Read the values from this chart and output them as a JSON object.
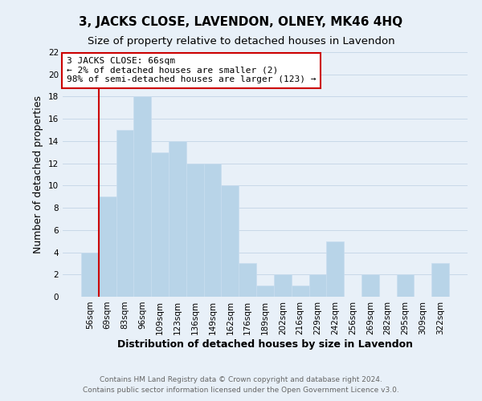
{
  "title": "3, JACKS CLOSE, LAVENDON, OLNEY, MK46 4HQ",
  "subtitle": "Size of property relative to detached houses in Lavendon",
  "xlabel": "Distribution of detached houses by size in Lavendon",
  "ylabel": "Number of detached properties",
  "bin_labels": [
    "56sqm",
    "69sqm",
    "83sqm",
    "96sqm",
    "109sqm",
    "123sqm",
    "136sqm",
    "149sqm",
    "162sqm",
    "176sqm",
    "189sqm",
    "202sqm",
    "216sqm",
    "229sqm",
    "242sqm",
    "256sqm",
    "269sqm",
    "282sqm",
    "295sqm",
    "309sqm",
    "322sqm"
  ],
  "bar_values": [
    4,
    9,
    15,
    18,
    13,
    14,
    12,
    12,
    10,
    3,
    1,
    2,
    1,
    2,
    5,
    0,
    2,
    0,
    2,
    0,
    3
  ],
  "bar_color": "#b8d4e8",
  "bar_edge_color": "#c8ddef",
  "highlight_line_color": "#cc0000",
  "annotation_text": "3 JACKS CLOSE: 66sqm\n← 2% of detached houses are smaller (2)\n98% of semi-detached houses are larger (123) →",
  "annotation_box_facecolor": "#ffffff",
  "annotation_box_edgecolor": "#cc0000",
  "ylim": [
    0,
    22
  ],
  "yticks": [
    0,
    2,
    4,
    6,
    8,
    10,
    12,
    14,
    16,
    18,
    20,
    22
  ],
  "grid_color": "#c8d8e8",
  "footer_line1": "Contains HM Land Registry data © Crown copyright and database right 2024.",
  "footer_line2": "Contains public sector information licensed under the Open Government Licence v3.0.",
  "background_color": "#e8f0f8",
  "plot_bg_color": "#e8f0f8",
  "title_fontsize": 11,
  "subtitle_fontsize": 9.5,
  "axis_label_fontsize": 9,
  "tick_fontsize": 7.5,
  "annotation_fontsize": 8,
  "footer_fontsize": 6.5
}
